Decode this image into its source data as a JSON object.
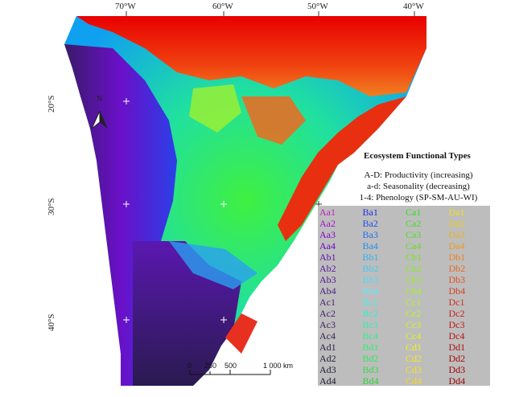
{
  "graticule": {
    "longitudes": [
      "70°W",
      "60°W",
      "50°W",
      "40°W"
    ],
    "latitudes": [
      "20°S",
      "30°S",
      "40°S"
    ]
  },
  "north_arrow": {
    "label": "N"
  },
  "legend": {
    "title": "Ecosystem Functional Types",
    "lines": [
      "A-D: Productivity (increasing)",
      "a-d: Seasonality (decreasing)",
      "1-4: Phenology (SP-SM-AU-WI)"
    ],
    "columns": [
      {
        "codes": [
          "Aa1",
          "Aa2",
          "Aa3",
          "Aa4",
          "Ab1",
          "Ab2",
          "Ab3",
          "Ab4",
          "Ac1",
          "Ac2",
          "Ac3",
          "Ac4",
          "Ad1",
          "Ad2",
          "Ad3",
          "Ad4"
        ],
        "colors": [
          "#c020c0",
          "#a010d0",
          "#8a00d0",
          "#7000c8",
          "#6010b0",
          "#5b16a0",
          "#521a90",
          "#4a1c84",
          "#4a1f78",
          "#43206c",
          "#3d2060",
          "#372055",
          "#30204a",
          "#2a1e40",
          "#241c36",
          "#1e1a2c"
        ]
      },
      {
        "codes": [
          "Ba1",
          "Ba2",
          "Ba3",
          "Ba4",
          "Bb1",
          "Bb2",
          "Bb3",
          "Bb4",
          "Bc1",
          "Bc2",
          "Bc3",
          "Bc4",
          "Bd1",
          "Bd2",
          "Bd3",
          "Bd4"
        ],
        "colors": [
          "#2030e0",
          "#2050e8",
          "#2070ea",
          "#2090ec",
          "#30b0f0",
          "#40c8f4",
          "#50d8f8",
          "#60e8fa",
          "#40f0e8",
          "#30f0d0",
          "#30f0b0",
          "#30f090",
          "#30f070",
          "#30e858",
          "#30e040",
          "#28d830"
        ]
      },
      {
        "codes": [
          "Ca1",
          "Ca2",
          "Ca3",
          "Ca4",
          "Cb1",
          "Cb2",
          "Cb3",
          "Cb4",
          "Cc1",
          "Cc2",
          "Cc3",
          "Cc4",
          "Cd1",
          "Cd2",
          "Cd3",
          "Cd4"
        ],
        "colors": [
          "#30e020",
          "#40e020",
          "#50e020",
          "#60e020",
          "#70e820",
          "#80f020",
          "#90f420",
          "#a0f420",
          "#b0f420",
          "#c0f420",
          "#d0f420",
          "#e0f420",
          "#f0f020",
          "#f4e820",
          "#f8e020",
          "#f8d820"
        ]
      },
      {
        "codes": [
          "Da1",
          "Da2",
          "Da3",
          "Da4",
          "Db1",
          "Db2",
          "Db3",
          "Db4",
          "Dc1",
          "Dc2",
          "Dc3",
          "Dc4",
          "Dd1",
          "Dd2",
          "Dd3",
          "Dd4"
        ],
        "colors": [
          "#f0e020",
          "#f0c820",
          "#f0b020",
          "#f09820",
          "#f08020",
          "#e86820",
          "#e05020",
          "#d84020",
          "#d03020",
          "#c82020",
          "#c01818",
          "#b81010",
          "#b01010",
          "#a80c0c",
          "#a00808",
          "#980404"
        ]
      }
    ]
  },
  "scalebar": {
    "ticks": [
      "0",
      "250",
      "500",
      "1 000 km"
    ]
  },
  "colors": {
    "ocean": "#ffffff",
    "legend_panel": "#bdbdbd"
  }
}
